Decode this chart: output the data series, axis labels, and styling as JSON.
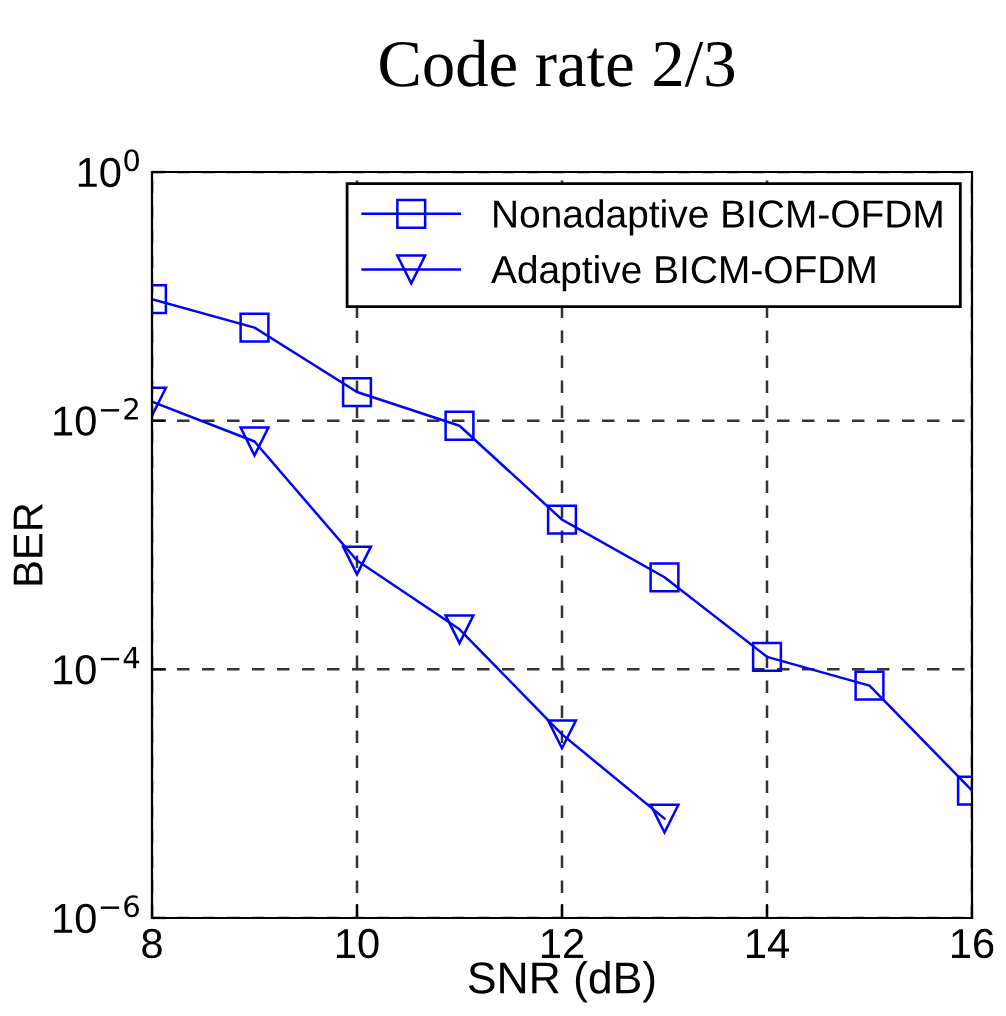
{
  "chart_data": {
    "type": "line",
    "title": "Code rate 2/3",
    "xlabel": "SNR (dB)",
    "ylabel": "BER",
    "log": "y",
    "grid": true,
    "legend": "top right",
    "line_style": "solid",
    "xlim": [
      8,
      16
    ],
    "xticks": [
      8,
      10,
      12,
      14,
      16
    ],
    "ylim": [
      1e-06,
      1
    ],
    "yticks": [
      {
        "value": 1e-06,
        "label": "10$^{−6}$"
      },
      {
        "value": 0.0001,
        "label": "10$^{−4}$"
      },
      {
        "value": 0.01,
        "label": "10$^{−2}$"
      },
      {
        "value": 1,
        "label": "10$^{0}$"
      }
    ],
    "series": [
      {
        "name": "Nonadaptive BICM-OFDM",
        "color": "#0000ff",
        "marker": "square",
        "x": [
          8,
          9,
          10,
          11,
          12,
          13,
          14,
          15,
          16
        ],
        "values": [
          0.095,
          0.056,
          0.017,
          0.0091,
          0.0016,
          0.00055,
          0.000126,
          7.4e-05,
          1.06e-05
        ]
      },
      {
        "name": "Adaptive BICM-OFDM",
        "color": "#0000ff",
        "marker": "triangle_down",
        "x": [
          8,
          9,
          10,
          11,
          12,
          13
        ],
        "values": [
          0.0142,
          0.0068,
          0.00075,
          0.00021,
          3e-05,
          6.3e-06
        ]
      }
    ]
  }
}
